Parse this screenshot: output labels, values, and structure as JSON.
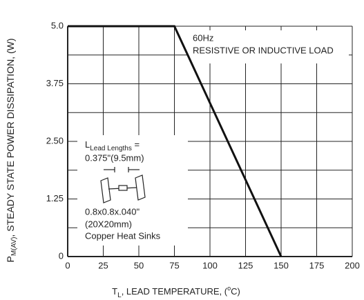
{
  "chart_data": {
    "type": "line",
    "y_label": {
      "symbol": "P",
      "subscript": "M(AV)",
      "text": ", STEADY STATE POWER DISSIPATION, (W)"
    },
    "x_label": {
      "symbol": "T",
      "subscript": "L",
      "text": ", LEAD TEMPERATURE, (",
      "superscript": "o",
      "end": "C)"
    },
    "x": [
      0,
      75,
      150
    ],
    "series": [
      {
        "color": "#111111",
        "values": [
          5,
          5,
          0
        ]
      }
    ],
    "xlim": [
      0,
      200
    ],
    "ylim": [
      0,
      5
    ],
    "xticks": [
      0,
      25,
      50,
      75,
      100,
      125,
      150,
      175,
      200
    ],
    "yticks": [
      0,
      1.25,
      {
        "value": 2.5,
        "label": "2.50"
      },
      3.75,
      {
        "value": 5,
        "label": "5.0"
      }
    ],
    "minor_yticks": [
      0.625,
      1.875,
      3.125,
      4.375
    ],
    "grid": true,
    "annotations": {
      "frequency": "60Hz",
      "load": "RESISTIVE OR INDUCTIVE LOAD"
    },
    "inset": {
      "lead_symbol": "L",
      "lead_subscript": "Lead Lengths",
      "lead_eq": " =",
      "lead_length": "0.375\"(9.5mm)",
      "sink_size": "0.8x0.8x.040\"",
      "sink_mm": "(20X20mm)",
      "sink_type": "Copper Heat Sinks"
    }
  }
}
